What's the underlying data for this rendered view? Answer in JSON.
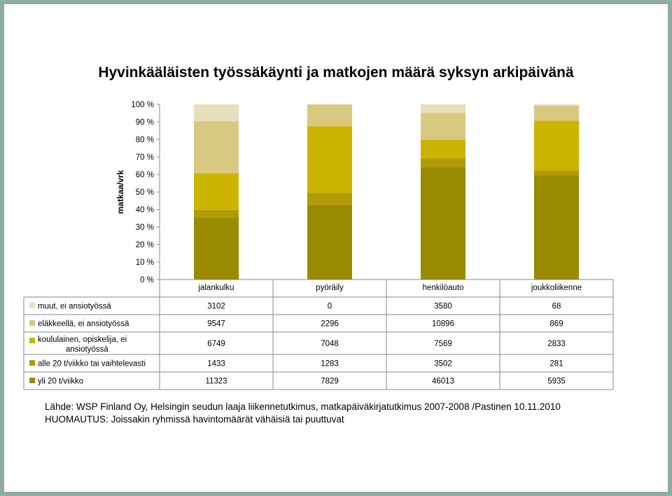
{
  "chart_data": {
    "type": "bar",
    "stacked": "percent",
    "title": "Hyvinkääläisten työssäkäynti ja matkojen määrä syksyn arkipäivänä",
    "ylabel": "matkaa/vrk",
    "xlabel": "",
    "ylim": [
      0,
      100
    ],
    "yticks": [
      "0 %",
      "10 %",
      "20 %",
      "30 %",
      "40 %",
      "50 %",
      "60 %",
      "70 %",
      "80 %",
      "90 %",
      "100 %"
    ],
    "grid": false,
    "legend": "table-left",
    "categories": [
      "jalankulku",
      "pyöräily",
      "henkilöauto",
      "joukkoliikenne"
    ],
    "series": [
      {
        "name": "yli 20 t/viikko",
        "color": "#9a8a00",
        "values": [
          11323,
          7829,
          46013,
          5935
        ]
      },
      {
        "name": "alle 20 t/viikko tai vaihtelevasti",
        "color": "#b09a06",
        "values": [
          1433,
          1283,
          3502,
          281
        ]
      },
      {
        "name": "koululainen, opiskelija, ei ansiotyössä",
        "color": "#cbb400",
        "values": [
          6749,
          7048,
          7569,
          2833
        ]
      },
      {
        "name": "eläkkeellä, ei ansiotyössä",
        "color": "#d8c880",
        "values": [
          9547,
          2296,
          10896,
          869
        ]
      },
      {
        "name": "muut, ei ansiotyössä",
        "color": "#e6dfbb",
        "values": [
          3102,
          0,
          3580,
          68
        ]
      }
    ]
  },
  "source_lines": [
    "Lähde: WSP Finland Oy, Helsingin seudun laaja liikennetutkimus,  matkapäiväkirjatutkimus 2007-2008 /Pastinen 10.11.2010",
    "HUOMAUTUS: Joissakin ryhmissä havintomäärät vähäisiä tai puuttuvat"
  ]
}
